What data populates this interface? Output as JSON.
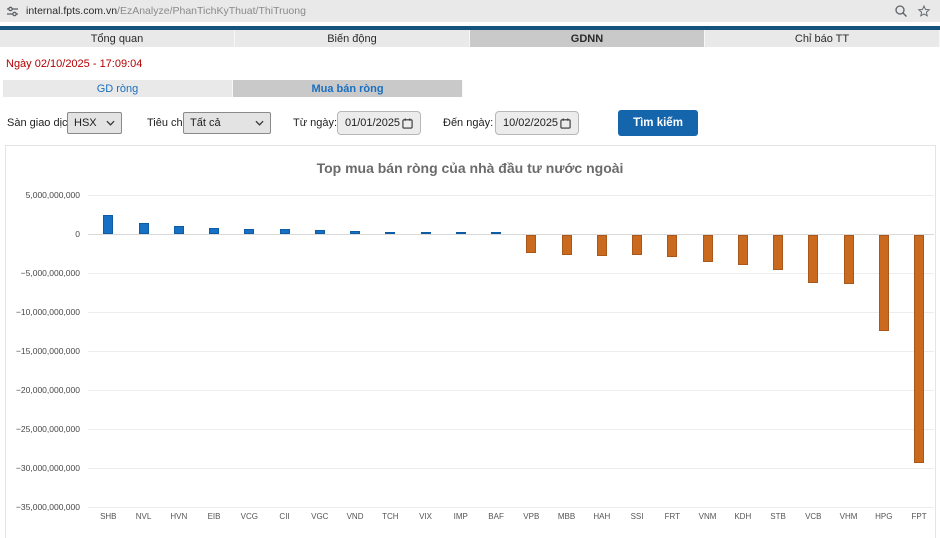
{
  "browser": {
    "url_host": "internal.fpts.com.vn",
    "url_path": "/EzAnalyze/PhanTichKyThuat/ThiTruong",
    "icons": [
      "tune-icon",
      "zoom-icon",
      "bookmark-star-icon"
    ]
  },
  "tabs": [
    {
      "label": "Tổng quan",
      "active": false
    },
    {
      "label": "Biến động",
      "active": false
    },
    {
      "label": "GDNN",
      "active": true
    },
    {
      "label": "Chỉ báo TT",
      "active": false
    }
  ],
  "date_line": "Ngày 02/10/2025 - 17:09:04",
  "subtabs": [
    {
      "label": "GD ròng",
      "active": false
    },
    {
      "label": "Mua bán ròng",
      "active": true
    }
  ],
  "filters": {
    "exchange_label": "Sàn giao dịch",
    "exchange_value": "HSX",
    "criteria_label": "Tiêu chí",
    "criteria_value": "Tất cả",
    "from_label": "Từ ngày:",
    "from_value": "01/01/2025",
    "to_label": "Đến ngày:",
    "to_value": "10/02/2025",
    "search_button": "Tìm kiếm"
  },
  "chart_data": {
    "type": "bar",
    "title": "Top mua bán ròng của nhà đầu tư nước ngoài",
    "categories": [
      "SHB",
      "NVL",
      "HVN",
      "EIB",
      "VCG",
      "CII",
      "VGC",
      "VND",
      "TCH",
      "VIX",
      "IMP",
      "BAF",
      "VPB",
      "MBB",
      "HAH",
      "SSI",
      "FRT",
      "VNM",
      "KDH",
      "STB",
      "VCB",
      "VHM",
      "HPG",
      "FPT"
    ],
    "values": [
      2400000000,
      1400000000,
      1000000000,
      800000000,
      650000000,
      600000000,
      450000000,
      380000000,
      300000000,
      250000000,
      220000000,
      200000000,
      -2300000000,
      -2600000000,
      -2700000000,
      -2600000000,
      -2800000000,
      -3400000000,
      -3800000000,
      -4500000000,
      -6100000000,
      -6250000000,
      -12300000000,
      -29200000000
    ],
    "xlabel": "",
    "ylabel": "",
    "ylim": [
      -35000000000,
      5000000000
    ],
    "ytick_step": 5000000000,
    "grid": true,
    "legend": "none",
    "positive_color": "#1670c4",
    "positive_border": "#0e5ca6",
    "negative_color": "#c96a1f",
    "negative_border": "#a8581b"
  }
}
